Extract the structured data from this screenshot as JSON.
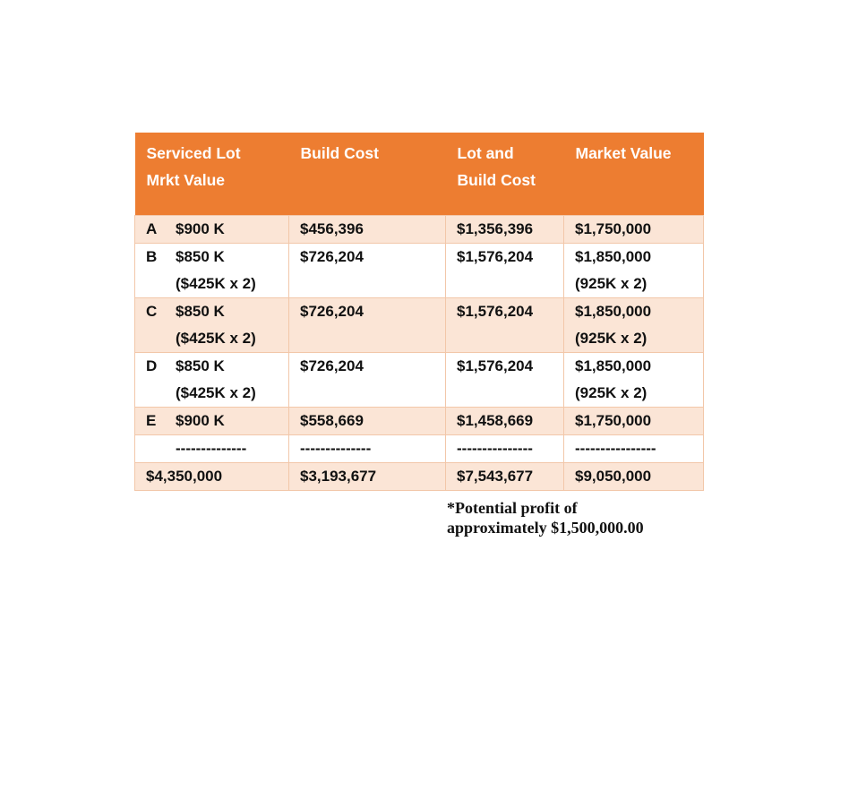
{
  "colors": {
    "header_bg": "#ED7D31",
    "row_shaded_bg": "#FBE5D6",
    "row_plain_bg": "#FFFFFF",
    "grid_border": "#F2C7A9",
    "header_text": "#FFFFFF",
    "body_text": "#111111"
  },
  "table": {
    "header": {
      "col1_line1": "Serviced Lot",
      "col1_line2": "Mrkt Value",
      "col2": "Build Cost",
      "col3_line1": "Lot and",
      "col3_line2": "Build Cost",
      "col4": "Market Value"
    },
    "rows": [
      {
        "label": "A",
        "lot_value": "$900 K",
        "lot_value_line2": "",
        "build_cost": "$456,396",
        "lot_and_build": "$1,356,396",
        "market_value": "$1,750,000",
        "market_value_line2": ""
      },
      {
        "label": "B",
        "lot_value": "$850 K",
        "lot_value_line2": "($425K x 2)",
        "build_cost": "$726,204",
        "lot_and_build": "$1,576,204",
        "market_value": "$1,850,000",
        "market_value_line2": "(925K x 2)"
      },
      {
        "label": "C",
        "lot_value": "$850 K",
        "lot_value_line2": "($425K x 2)",
        "build_cost": "$726,204",
        "lot_and_build": "$1,576,204",
        "market_value": "$1,850,000",
        "market_value_line2": "(925K x 2)"
      },
      {
        "label": "D",
        "lot_value": "$850 K",
        "lot_value_line2": "($425K x 2)",
        "build_cost": "$726,204",
        "lot_and_build": "$1,576,204",
        "market_value": "$1,850,000",
        "market_value_line2": "(925K x 2)"
      },
      {
        "label": "E",
        "lot_value": "$900 K",
        "lot_value_line2": "",
        "build_cost": "$558,669",
        "lot_and_build": "$1,458,669",
        "market_value": "$1,750,000",
        "market_value_line2": ""
      }
    ],
    "separator": {
      "col1": "--------------",
      "col2": "--------------",
      "col3": "---------------",
      "col4": "----------------"
    },
    "totals": {
      "col1": "$4,350,000",
      "col2": "$3,193,677",
      "col3": "$7,543,677",
      "col4": "$9,050,000"
    }
  },
  "note": {
    "line1": "*Potential profit of",
    "line2": "approximately $1,500,000.00"
  }
}
